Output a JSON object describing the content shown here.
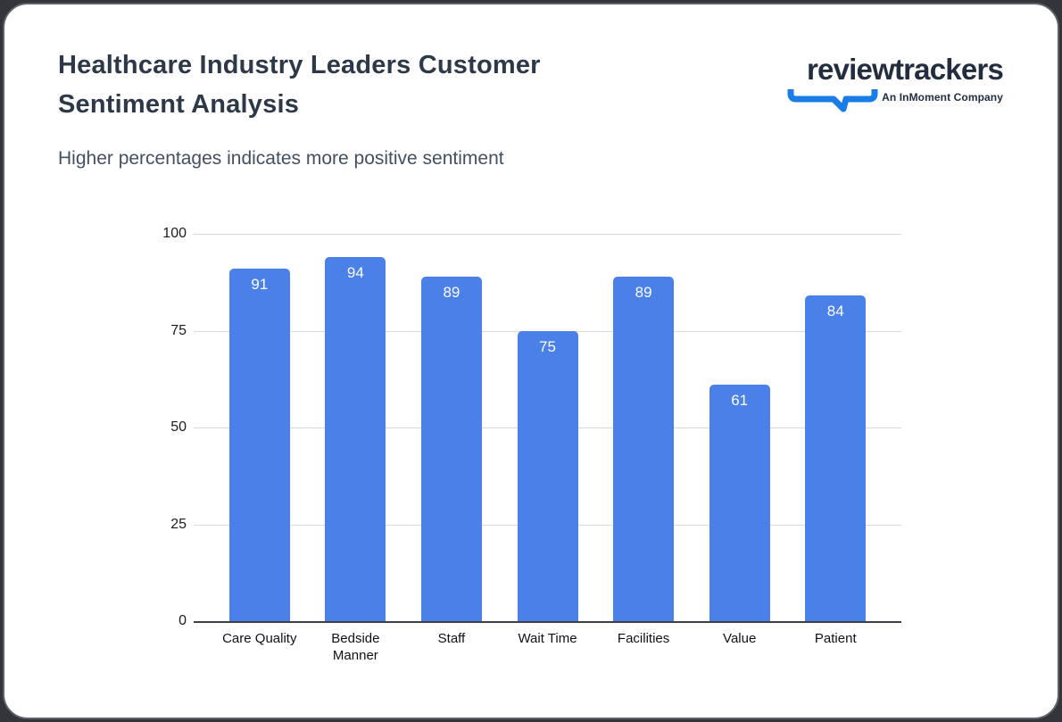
{
  "page": {
    "background": "#333538"
  },
  "card": {
    "background": "#ffffff",
    "border_color": "#5b616b"
  },
  "header": {
    "title": "Healthcare Industry Leaders Customer Sentiment Analysis",
    "subtitle": "Higher percentages indicates more positive sentiment"
  },
  "logo": {
    "wordmark": "reviewtrackers",
    "tagline": "An InMoment Company",
    "blue": "#1a7ce6",
    "navy": "#222d40"
  },
  "chart_data": {
    "type": "bar",
    "title": "Healthcare Industry Leaders Customer Sentiment Analysis",
    "subtitle": "Higher percentages indicates more positive sentiment",
    "categories": [
      "Care Quality",
      "Bedside Manner",
      "Staff",
      "Wait Time",
      "Facilities",
      "Value",
      "Patient"
    ],
    "values": [
      91,
      94,
      89,
      75,
      89,
      61,
      84
    ],
    "xlabel": "",
    "ylabel": "",
    "ylim": [
      0,
      100
    ],
    "y_ticks": [
      0,
      25,
      50,
      75,
      100
    ],
    "grid": true,
    "legend": "none",
    "bar_color": "#4a80e8",
    "value_label_color": "#ffffff",
    "axis_label_color": "#1c1c1c",
    "gridline_color": "#d9d9d9",
    "baseline_color": "#3c4043"
  }
}
